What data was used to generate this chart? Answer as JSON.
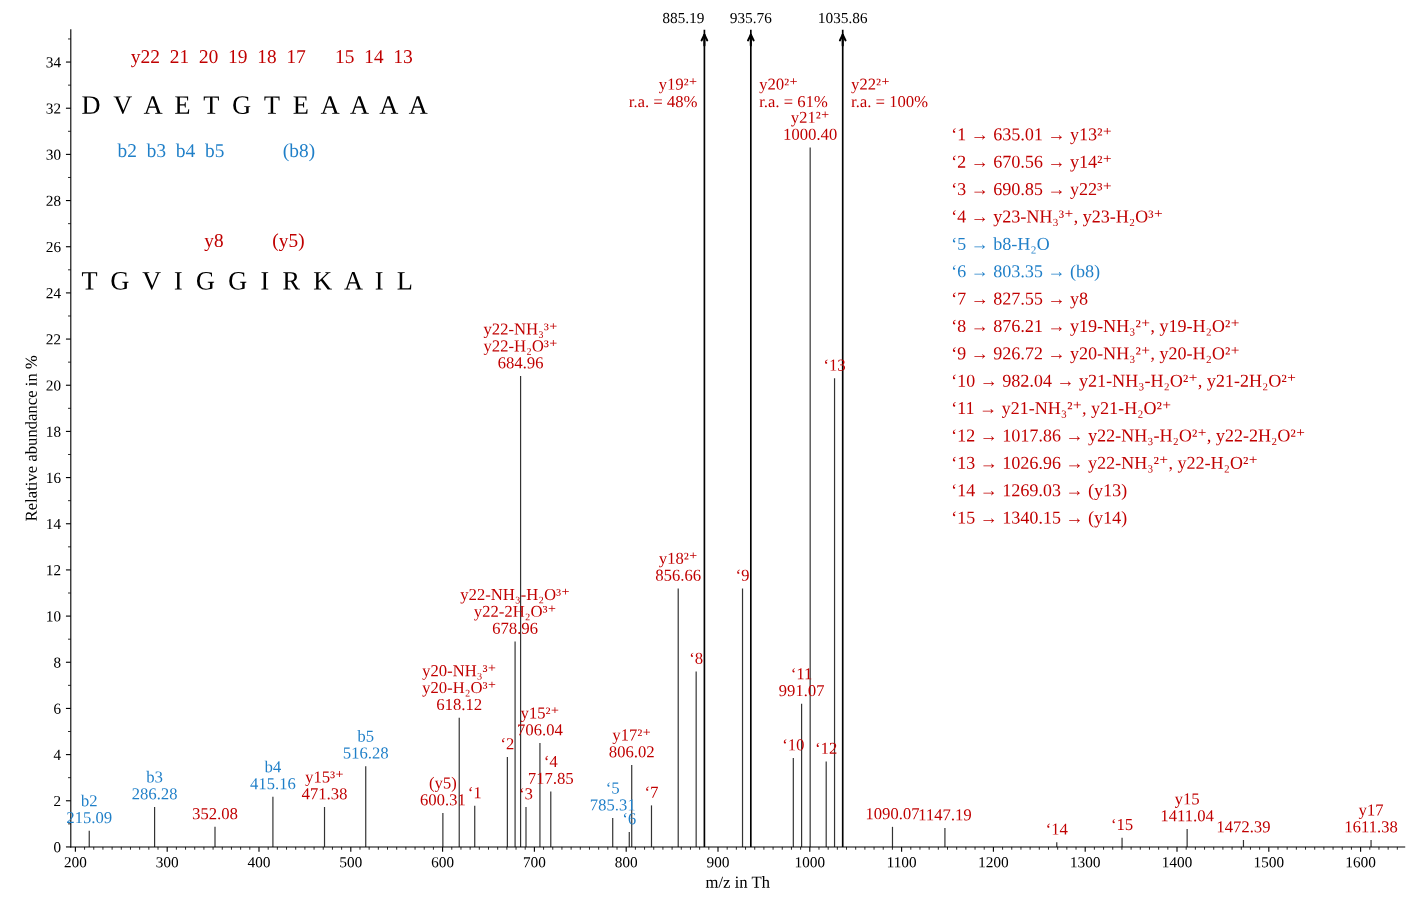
{
  "chart_data": {
    "type": "bar",
    "xlabel": "m/z in Th",
    "ylabel": "Relative abundance in %",
    "xlim": [
      195,
      1648
    ],
    "ylim": [
      0,
      35.4
    ],
    "xticks": [
      200,
      300,
      400,
      500,
      600,
      700,
      800,
      900,
      1000,
      1100,
      1200,
      1300,
      1400,
      1500,
      1600
    ],
    "yticks": [
      0,
      2,
      4,
      6,
      8,
      10,
      12,
      14,
      16,
      18,
      20,
      22,
      24,
      26,
      28,
      30,
      32,
      34
    ],
    "x": [
      215.09,
      286.28,
      352.08,
      415.16,
      471.38,
      516.28,
      600.31,
      618.12,
      635.01,
      670.56,
      678.96,
      684.96,
      690.85,
      706.04,
      717.85,
      785.31,
      803.35,
      806.02,
      827.55,
      856.66,
      876.21,
      926.72,
      982.04,
      991.07,
      1000.4,
      1017.86,
      1026.96,
      1090.07,
      1147.19,
      1269.03,
      1340.15,
      1411.04,
      1472.39,
      1611.38
    ],
    "values": [
      0.7,
      1.73,
      0.87,
      2.17,
      1.73,
      3.5,
      1.47,
      5.6,
      1.78,
      3.9,
      8.9,
      20.4,
      1.73,
      4.5,
      2.4,
      1.25,
      0.65,
      3.55,
      1.8,
      11.2,
      7.6,
      11.2,
      3.85,
      6.2,
      30.3,
      3.7,
      20.3,
      0.87,
      0.82,
      0.2,
      0.4,
      0.78,
      0.3,
      0.3
    ],
    "color": "#333333",
    "ref_lines": [
      {
        "axis": "x",
        "value": 885.19,
        "label": "885.19",
        "color": "#000000"
      },
      {
        "axis": "x",
        "value": 935.76,
        "label": "935.76",
        "color": "#000000"
      },
      {
        "axis": "x",
        "value": 1035.86,
        "label": "1035.86",
        "color": "#000000"
      }
    ],
    "annotations": [
      {
        "text": "b2\n215.09",
        "x": 215.09,
        "y": 0.7
      },
      {
        "text": "b3\n286.28",
        "x": 286.28,
        "y": 1.73
      },
      {
        "text": "352.08",
        "x": 352.08,
        "y": 0.87
      },
      {
        "text": "b4\n415.16",
        "x": 415.16,
        "y": 2.17
      },
      {
        "text": "y15³⁺\n471.38",
        "x": 471.38,
        "y": 1.73
      },
      {
        "text": "b5\n516.28",
        "x": 516.28,
        "y": 3.5
      },
      {
        "text": "(y5)\n600.31",
        "x": 600.31,
        "y": 1.47
      },
      {
        "text": "y20-NH₃³⁺\ny20-H₂O³⁺\n618.12",
        "x": 618.12,
        "y": 5.6
      },
      {
        "text": "‘1",
        "x": 635.01,
        "y": 1.78
      },
      {
        "text": "‘2",
        "x": 670.56,
        "y": 3.9
      },
      {
        "text": "y22-NH₃-H₂O³⁺\ny22-2H₂O³⁺\n678.96",
        "x": 678.96,
        "y": 8.9
      },
      {
        "text": "y22-NH₃³⁺\ny22-H₂O³⁺\n684.96",
        "x": 684.96,
        "y": 20.4
      },
      {
        "text": "‘3",
        "x": 690.85,
        "y": 1.73
      },
      {
        "text": "y15²⁺\n706.04",
        "x": 706.04,
        "y": 4.5
      },
      {
        "text": "‘4\n717.85",
        "x": 717.85,
        "y": 2.4
      },
      {
        "text": "‘5\n785.31",
        "x": 785.31,
        "y": 1.25
      },
      {
        "text": "‘6",
        "x": 803.35,
        "y": 0.65
      },
      {
        "text": "y17²⁺\n806.02",
        "x": 806.02,
        "y": 3.55
      },
      {
        "text": "‘7",
        "x": 827.55,
        "y": 1.8
      },
      {
        "text": "y18²⁺\n856.66",
        "x": 856.66,
        "y": 11.2
      },
      {
        "text": "‘8",
        "x": 876.21,
        "y": 7.6
      },
      {
        "text": "‘9",
        "x": 926.72,
        "y": 11.2
      },
      {
        "text": "‘10",
        "x": 982.04,
        "y": 3.85
      },
      {
        "text": "‘11\n991.07",
        "x": 991.07,
        "y": 6.2
      },
      {
        "text": "y21²⁺\n1000.40",
        "x": 1000.4,
        "y": 30.3
      },
      {
        "text": "‘12",
        "x": 1017.86,
        "y": 3.7
      },
      {
        "text": "‘13",
        "x": 1026.96,
        "y": 20.3
      },
      {
        "text": "1090.07",
        "x": 1090.07,
        "y": 0.87
      },
      {
        "text": "1147.19",
        "x": 1147.19,
        "y": 0.82
      },
      {
        "text": "‘14",
        "x": 1269.03,
        "y": 0.2
      },
      {
        "text": "‘15",
        "x": 1340.15,
        "y": 0.4
      },
      {
        "text": "y15\n1411.04",
        "x": 1411.04,
        "y": 0.78
      },
      {
        "text": "1472.39",
        "x": 1472.39,
        "y": 0.3
      },
      {
        "text": "y17\n1611.38",
        "x": 1611.38,
        "y": 0.3
      },
      {
        "text": "y19²⁺\nr.a. = 48%",
        "x": 885.19,
        "y": 32.6
      },
      {
        "text": "y20²⁺\nr.a. = 61%",
        "x": 935.76,
        "y": 32.6
      },
      {
        "text": "y22²⁺\nr.a. = 100%",
        "x": 1035.86,
        "y": 32.6
      },
      "y22  21  20  19  18  17      15  14  13",
      "D  V  A  E  T  G  T  E  A  A  A  A",
      "b2  b3  b4  b5            (b8)",
      "y8          (y5)",
      "T  G  V  I  G  G  I  R  K  A  I  L",
      "‘1 → 635.01 → y13²⁺",
      "‘2 → 670.56 → y14²⁺",
      "‘3 → 690.85 → y22³⁺",
      "‘4 → y23-NH₃³⁺, y23-H₂O³⁺",
      "‘5 → b8-H₂O",
      "‘6 → 803.35 → (b8)",
      "‘7 → 827.55 → y8",
      "‘8 → 876.21 → y19-NH₃²⁺, y19-H₂O²⁺",
      "‘9 → 926.72 → y20-NH₃²⁺, y20-H₂O²⁺",
      "‘10 → 982.04 → y21-NH₃-H₂O²⁺, y21-2H₂O²⁺",
      "‘11 → y21-NH₃²⁺, y21-H₂O²⁺",
      "‘12 → 1017.86 → y22-NH₃-H₂O²⁺, y22-2H₂O²⁺",
      "‘13 → 1026.96 → y22-NH₃²⁺, y22-H₂O²⁺",
      "‘14 → 1269.03 → (y13)",
      "‘15 → 1340.15 → (y14)"
    ]
  }
}
